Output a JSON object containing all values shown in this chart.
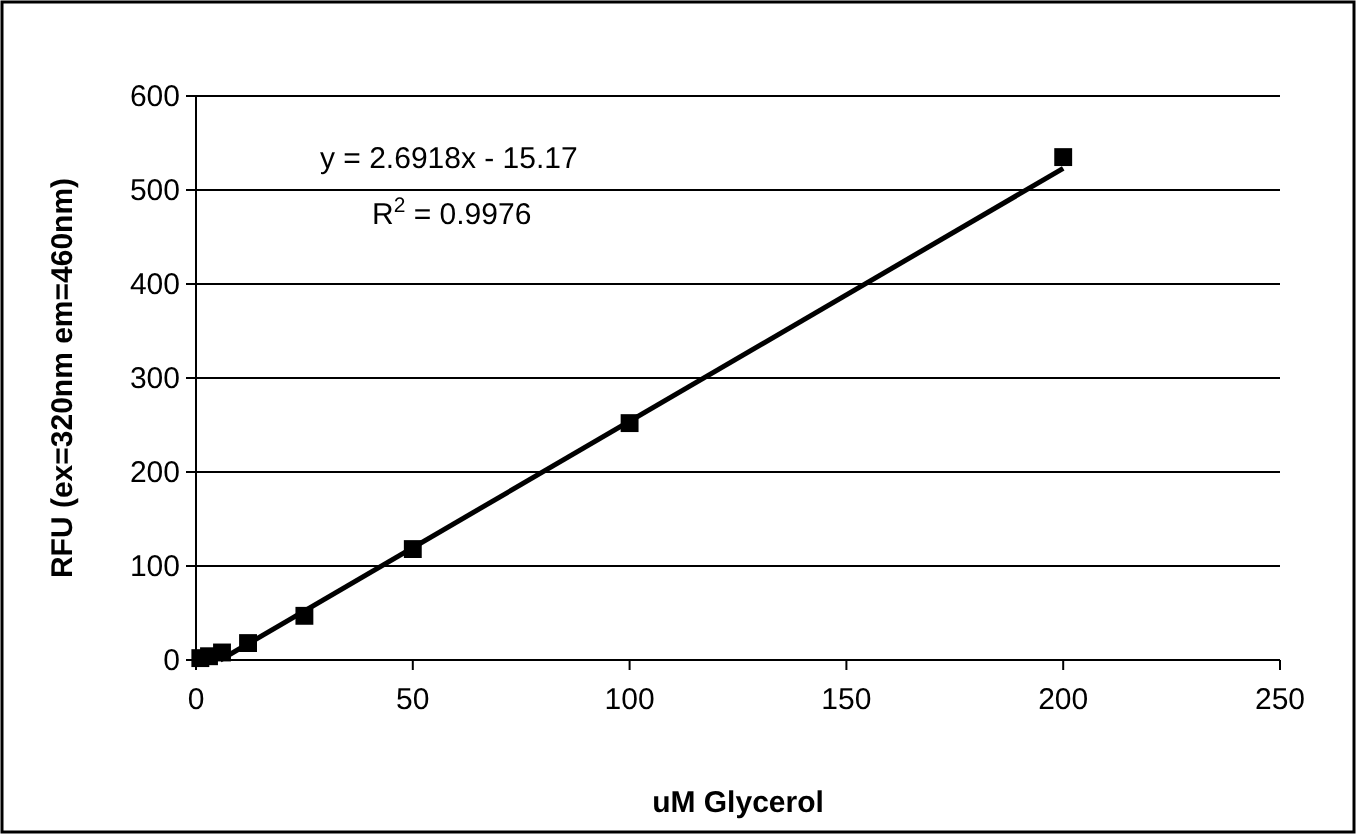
{
  "chart_data": {
    "type": "scatter",
    "xlabel": "uM Glycerol",
    "ylabel": "RFU (ex=320nm  em=460nm)",
    "xlim": [
      0,
      250
    ],
    "xticks": [
      0,
      50,
      100,
      150,
      200,
      250
    ],
    "ylim": [
      0,
      600
    ],
    "yticks": [
      0,
      100,
      200,
      300,
      400,
      500,
      600
    ],
    "grid": "y",
    "series": [
      {
        "marker": "square",
        "color": "#000000",
        "x": [
          1,
          3,
          6,
          12,
          25,
          50,
          100,
          200
        ],
        "values": [
          2,
          4,
          8,
          18,
          47,
          118,
          252,
          535
        ]
      },
      {
        "type": "line",
        "marker": "none",
        "color": "#000000",
        "x": [
          5.6,
          200
        ],
        "values": [
          0,
          523
        ]
      }
    ],
    "annotations": [
      "y = 2.6918x - 15.17",
      "R$^{2}$ = 0.9976"
    ]
  }
}
